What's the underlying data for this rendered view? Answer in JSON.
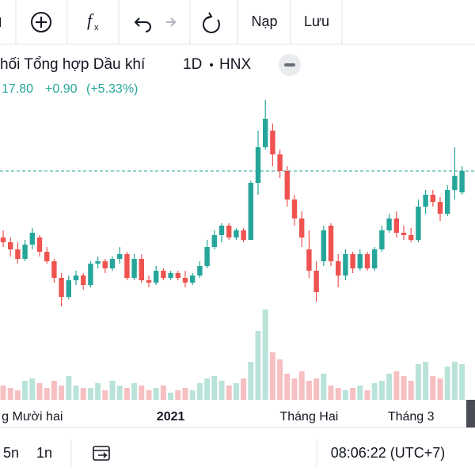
{
  "toolbar": {
    "load": "Nạp",
    "save": "Lưu"
  },
  "header": {
    "title": "hối Tổng hợp Dầu khí",
    "interval": "1D",
    "exchange": "HNX",
    "last": "17.80",
    "change": "+0.90",
    "change_pct": "(+5.33%)"
  },
  "footer": {
    "range_a": "5n",
    "range_b": "1n",
    "clock": "08:06:22 (UTC+7)"
  },
  "chart_data": {
    "type": "candlestick",
    "categories": [
      null,
      null,
      null,
      null,
      "g Mười hai",
      null,
      null,
      null,
      null,
      null,
      null,
      null,
      null,
      null,
      null,
      null,
      null,
      null,
      null,
      null,
      null,
      null,
      null,
      "2021",
      null,
      null,
      null,
      null,
      null,
      null,
      null,
      null,
      null,
      null,
      null,
      null,
      null,
      null,
      null,
      null,
      null,
      null,
      "Tháng Hai",
      null,
      null,
      null,
      null,
      null,
      null,
      null,
      null,
      null,
      null,
      null,
      null,
      null,
      "Tháng 3",
      null,
      null,
      null,
      null,
      null,
      null,
      null
    ],
    "open": [
      15.0,
      14.8,
      14.5,
      14.1,
      14.7,
      15.0,
      14.4,
      14.0,
      13.3,
      12.5,
      13.2,
      13.4,
      13.0,
      13.9,
      14.0,
      13.7,
      14.1,
      14.3,
      13.3,
      14.1,
      13.2,
      13.1,
      13.6,
      13.3,
      13.5,
      13.3,
      13.1,
      13.4,
      13.8,
      14.6,
      15.1,
      15.5,
      15.0,
      15.3,
      14.9,
      17.3,
      18.8,
      19.5,
      18.5,
      17.8,
      16.6,
      15.8,
      14.5,
      13.6,
      14.0,
      15.5,
      14.0,
      13.4,
      14.3,
      13.7,
      14.3,
      13.7,
      14.5,
      15.3,
      15.8,
      15.2,
      15.1,
      14.9,
      16.3,
      16.8,
      16.5,
      16.0,
      17.0,
      16.9
    ],
    "high": [
      15.3,
      15.0,
      14.8,
      14.9,
      15.4,
      15.1,
      14.6,
      14.1,
      13.5,
      13.4,
      13.6,
      13.5,
      14.0,
      14.2,
      14.1,
      14.2,
      14.6,
      14.4,
      14.3,
      14.3,
      13.4,
      13.8,
      13.7,
      13.6,
      13.6,
      13.6,
      13.5,
      14.0,
      14.9,
      15.3,
      15.6,
      15.6,
      15.4,
      15.4,
      17.4,
      19.5,
      20.8,
      19.8,
      18.7,
      18.0,
      16.8,
      16.1,
      15.3,
      14.0,
      15.5,
      15.6,
      14.3,
      14.5,
      14.4,
      14.5,
      14.4,
      14.6,
      15.5,
      16.0,
      16.1,
      15.5,
      15.4,
      16.6,
      17.0,
      17.0,
      16.7,
      17.2,
      18.8,
      18.0
    ],
    "low": [
      14.6,
      14.2,
      13.9,
      14.0,
      14.5,
      14.2,
      13.9,
      13.1,
      12.1,
      12.4,
      13.0,
      12.8,
      12.9,
      13.7,
      13.5,
      13.6,
      13.9,
      13.2,
      13.2,
      13.1,
      12.9,
      13.0,
      13.2,
      13.2,
      13.2,
      12.9,
      13.0,
      13.3,
      13.7,
      14.5,
      14.8,
      14.9,
      14.9,
      14.8,
      14.9,
      16.8,
      18.7,
      18.0,
      17.5,
      16.3,
      15.5,
      14.6,
      13.3,
      12.3,
      13.8,
      13.8,
      12.9,
      13.2,
      13.5,
      13.6,
      13.6,
      13.6,
      14.4,
      15.2,
      15.0,
      14.9,
      14.8,
      14.8,
      16.0,
      16.3,
      15.7,
      15.9,
      16.6,
      16.8
    ],
    "close": [
      14.8,
      14.5,
      14.1,
      14.7,
      15.2,
      14.4,
      14.0,
      13.3,
      12.5,
      13.2,
      13.4,
      13.0,
      13.9,
      14.0,
      13.7,
      14.1,
      14.3,
      13.3,
      14.1,
      13.2,
      13.1,
      13.6,
      13.3,
      13.5,
      13.3,
      13.1,
      13.4,
      13.8,
      14.6,
      15.1,
      15.5,
      15.0,
      15.3,
      14.9,
      17.3,
      18.8,
      20.0,
      18.5,
      17.8,
      16.6,
      15.8,
      15.0,
      13.6,
      12.7,
      15.3,
      14.0,
      13.4,
      14.3,
      13.7,
      14.3,
      13.7,
      14.5,
      15.3,
      15.8,
      15.2,
      15.1,
      14.9,
      16.3,
      16.8,
      16.5,
      16.0,
      17.0,
      17.6,
      17.8
    ],
    "volume": [
      0.6,
      0.5,
      0.4,
      0.8,
      0.9,
      0.7,
      0.5,
      0.8,
      0.6,
      1.0,
      0.6,
      0.5,
      0.5,
      0.7,
      0.4,
      0.8,
      0.6,
      0.5,
      0.7,
      0.6,
      0.4,
      0.5,
      0.6,
      0.3,
      0.4,
      0.5,
      0.4,
      0.7,
      0.9,
      1.0,
      0.8,
      0.6,
      0.7,
      0.9,
      1.6,
      2.9,
      3.8,
      2.0,
      1.7,
      1.1,
      0.9,
      1.2,
      0.8,
      0.9,
      1.1,
      0.6,
      0.5,
      0.4,
      0.5,
      0.6,
      0.4,
      0.7,
      0.8,
      1.1,
      1.2,
      1.0,
      0.8,
      1.5,
      1.6,
      1.0,
      0.9,
      1.4,
      1.6,
      1.5
    ],
    "ylim": [
      8,
      23
    ],
    "vlim": [
      0,
      4
    ],
    "up_color": "#26a69a",
    "down_color": "#ef5350",
    "up_volume_color": "#b9e3d9",
    "down_volume_color": "#f6bfc2"
  }
}
